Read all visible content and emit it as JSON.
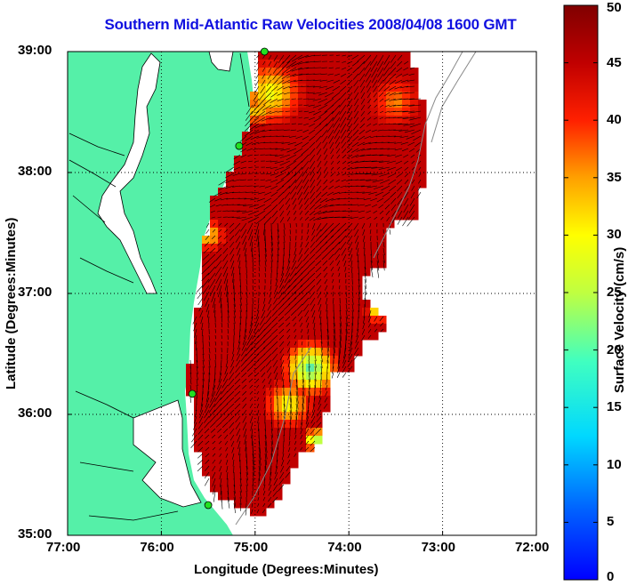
{
  "title": "Southern Mid-Atlantic Raw Velocities 2008/04/08 1600 GMT",
  "xlabel": "Longitude (Degrees:Minutes)",
  "ylabel": "Latitude (Degrees:Minutes)",
  "x_ticks": [
    "77:00",
    "76:00",
    "75:00",
    "74:00",
    "73:00",
    "72:00"
  ],
  "y_ticks": [
    "39:00",
    "38:00",
    "37:00",
    "36:00",
    "35:00"
  ],
  "colorbar": {
    "label": "Surface Velocity (cm/s)",
    "ticks": [
      "50",
      "45",
      "40",
      "35",
      "30",
      "25",
      "20",
      "15",
      "10",
      "5",
      "0"
    ],
    "range": [
      0,
      50
    ],
    "colormap": "jet"
  },
  "colors": {
    "land": "#55f0a8",
    "water": "#ffffff",
    "title": "#1010e0",
    "station": "#22e022"
  },
  "map": {
    "lon_range": [
      -77,
      -72
    ],
    "lat_range": [
      35,
      39
    ],
    "grid": true,
    "stations": [
      {
        "lon": -74.9,
        "lat": 39.0
      },
      {
        "lon": -75.17,
        "lat": 38.22
      },
      {
        "lon": -75.67,
        "lat": 36.17
      },
      {
        "lon": -75.5,
        "lat": 35.25
      }
    ]
  }
}
